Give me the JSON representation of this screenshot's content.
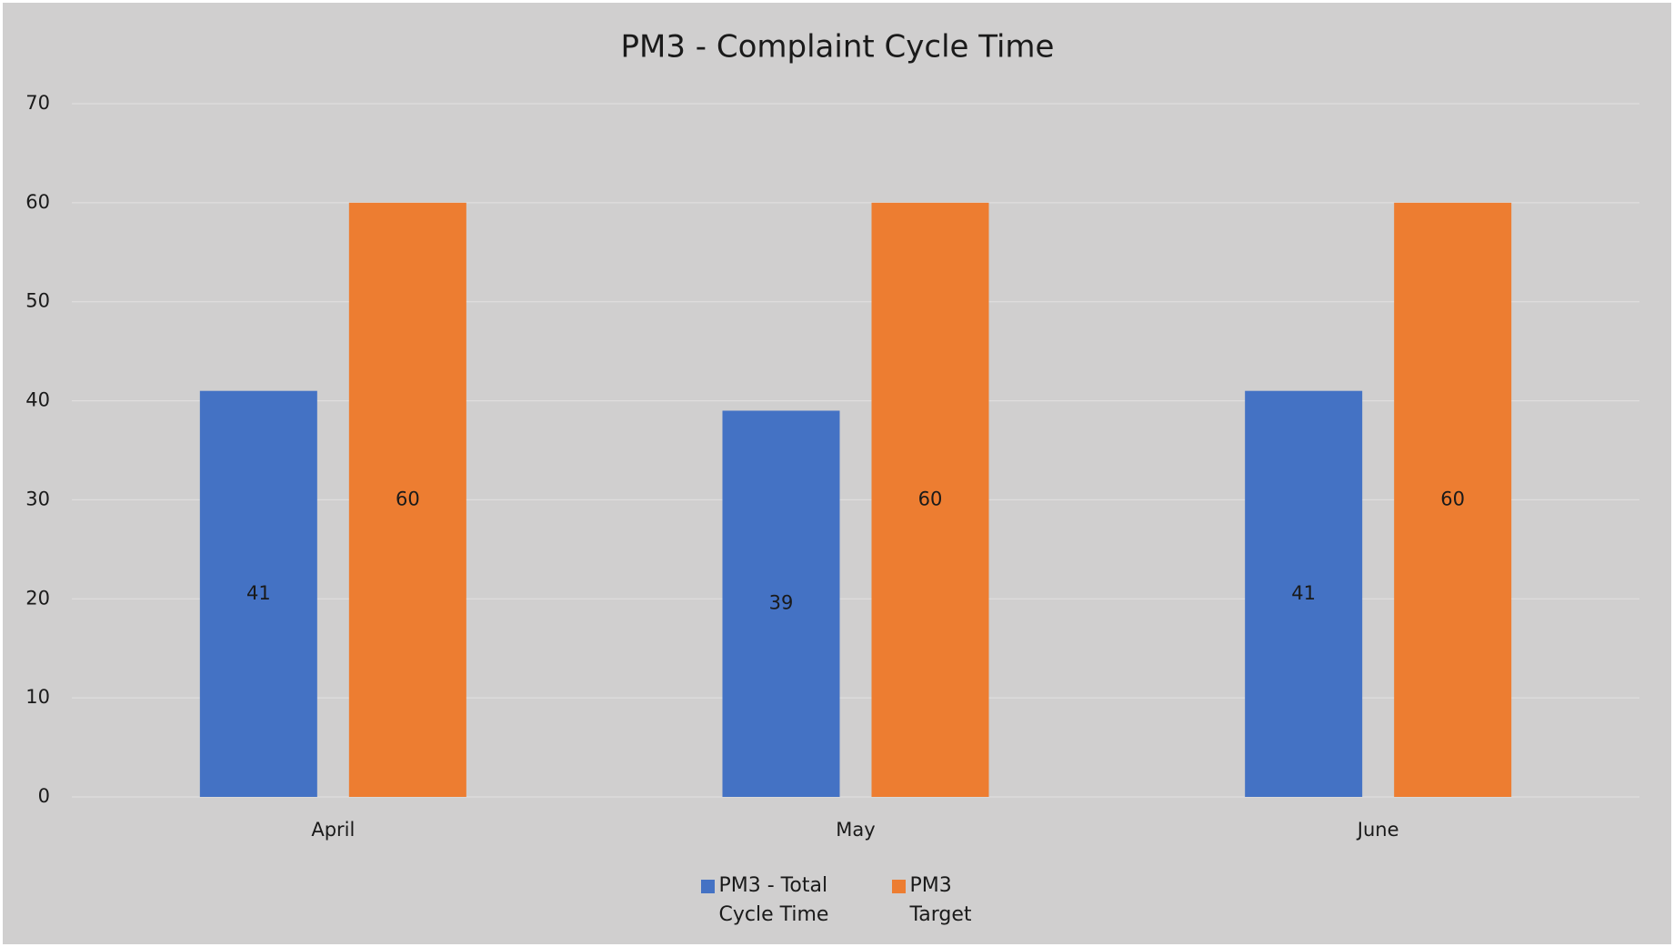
{
  "chart_data": {
    "type": "bar",
    "title": "PM3 - Complaint Cycle Time",
    "categories": [
      "April",
      "May",
      "June"
    ],
    "series": [
      {
        "name": "PM3 - Total Cycle Time",
        "color": "#4472c4",
        "values": [
          41,
          39,
          41
        ]
      },
      {
        "name": "PM3 Target",
        "color": "#ed7d31",
        "values": [
          60,
          60,
          60
        ]
      }
    ],
    "ylim": [
      0,
      70
    ],
    "yticks": [
      0,
      10,
      20,
      30,
      40,
      50,
      60,
      70
    ],
    "grid": true,
    "legend": "bottom"
  }
}
